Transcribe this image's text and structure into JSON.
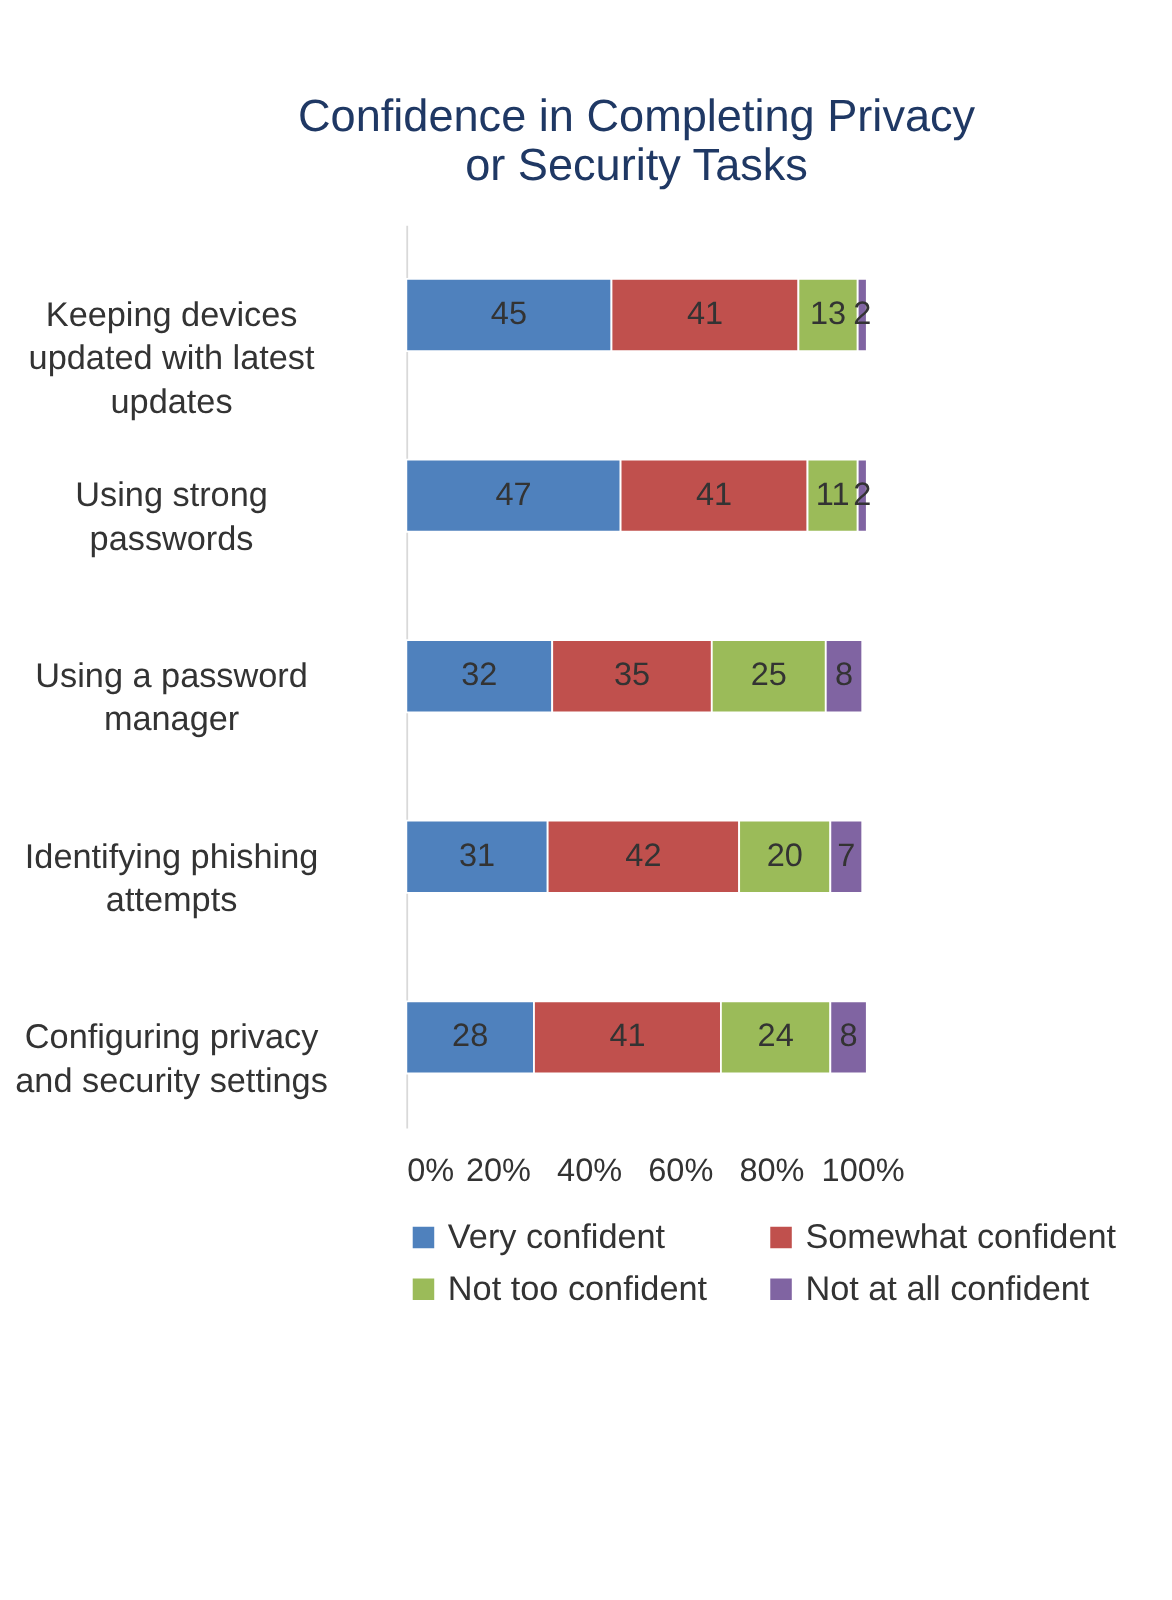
{
  "chart_data": {
    "type": "bar",
    "orientation": "horizontal",
    "stacked": true,
    "title": "Confidence in Completing Privacy or Security Tasks",
    "categories": [
      "Keeping devices updated with latest updates",
      "Using strong passwords",
      "Using a password manager",
      "Identifying phishing attempts",
      "Configuring privacy and security settings"
    ],
    "series": [
      {
        "name": "Very confident",
        "color": "#4f81bd",
        "values": [
          45,
          47,
          32,
          31,
          28
        ]
      },
      {
        "name": "Somewhat confident",
        "color": "#c0504d",
        "values": [
          41,
          41,
          35,
          42,
          41
        ]
      },
      {
        "name": "Not too confident",
        "color": "#9bbb59",
        "values": [
          13,
          11,
          25,
          20,
          24
        ]
      },
      {
        "name": "Not at all confident",
        "color": "#8064a2",
        "values": [
          2,
          2,
          8,
          7,
          8
        ]
      }
    ],
    "xlim": [
      0,
      101
    ],
    "xticks": [
      {
        "value": 0,
        "label": "0%"
      },
      {
        "value": 20,
        "label": "20%"
      },
      {
        "value": 40,
        "label": "40%"
      },
      {
        "value": 60,
        "label": "60%"
      },
      {
        "value": 80,
        "label": "80%"
      },
      {
        "value": 100,
        "label": "100%"
      }
    ],
    "data_labels": true,
    "grid": false,
    "legend": "bottom"
  }
}
